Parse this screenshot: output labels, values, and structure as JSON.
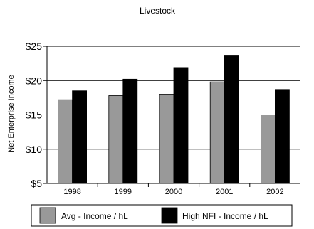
{
  "chart_data": {
    "type": "bar",
    "title": "Livestock",
    "xlabel": "",
    "ylabel": "Net Enterprise Income",
    "categories": [
      "1998",
      "1999",
      "2000",
      "2001",
      "2002"
    ],
    "series": [
      {
        "name": "Avg - Income / hL",
        "values": [
          17.2,
          17.8,
          18.0,
          19.8,
          15.0
        ],
        "color": "#999999"
      },
      {
        "name": "High NFI - Income / hL",
        "values": [
          18.5,
          20.2,
          21.9,
          23.6,
          18.7
        ],
        "color": "#000000"
      }
    ],
    "ylim": [
      5,
      25
    ],
    "yticks": [
      5,
      10,
      15,
      20,
      25
    ],
    "ytick_labels": [
      "$5",
      "$10",
      "$15",
      "$20",
      "$25"
    ],
    "grid": true,
    "legend_position": "bottom"
  }
}
